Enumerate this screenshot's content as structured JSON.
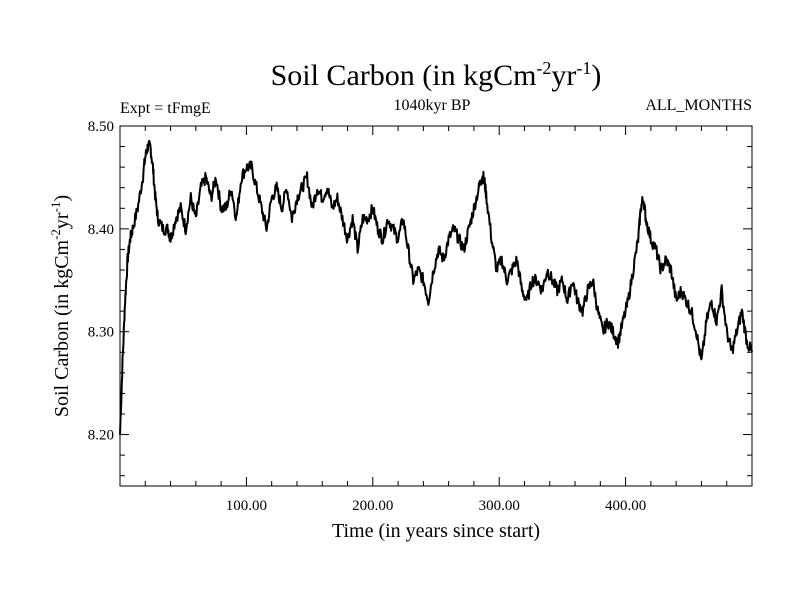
{
  "chart_data": {
    "type": "line",
    "title_base": "Soil Carbon (in kgCm",
    "title_sup1": "-2",
    "title_mid": "yr",
    "title_sup2": "-1",
    "title_end": ")",
    "subtitle_left": "Expt = tFmgE",
    "subtitle_center": "1040kyr BP",
    "subtitle_right": "ALL_MONTHS",
    "xlabel": "Time (in years since start)",
    "ylabel_base": "Soil Carbon (in kgCm",
    "ylabel_sup1": "-2",
    "ylabel_mid": "yr",
    "ylabel_sup2": "-1",
    "ylabel_end": ")",
    "xlim": [
      0,
      500
    ],
    "ylim": [
      8.15,
      8.5
    ],
    "x_ticks": [
      100,
      200,
      300,
      400
    ],
    "x_tick_labels": [
      "100.00",
      "200.00",
      "300.00",
      "400.00"
    ],
    "y_ticks": [
      8.2,
      8.3,
      8.4,
      8.5
    ],
    "y_tick_labels": [
      "8.20",
      "8.30",
      "8.40",
      "8.50"
    ],
    "grid": false,
    "series": [
      {
        "name": "Soil Carbon",
        "color": "#000000",
        "x": [
          0,
          2,
          4,
          6,
          8,
          10,
          14,
          18,
          20,
          22,
          24,
          26,
          28,
          30,
          34,
          38,
          40,
          44,
          48,
          52,
          56,
          60,
          64,
          68,
          72,
          76,
          80,
          84,
          88,
          92,
          96,
          100,
          104,
          108,
          112,
          116,
          120,
          124,
          128,
          132,
          136,
          140,
          144,
          148,
          152,
          156,
          160,
          164,
          168,
          172,
          176,
          180,
          184,
          188,
          192,
          196,
          200,
          204,
          208,
          212,
          216,
          220,
          224,
          228,
          232,
          236,
          240,
          244,
          248,
          252,
          256,
          260,
          264,
          268,
          272,
          276,
          280,
          284,
          286,
          288,
          290,
          294,
          298,
          302,
          306,
          310,
          314,
          318,
          322,
          326,
          330,
          334,
          338,
          342,
          346,
          350,
          354,
          358,
          362,
          366,
          370,
          374,
          378,
          382,
          386,
          390,
          394,
          398,
          402,
          406,
          410,
          412,
          414,
          416,
          420,
          424,
          428,
          432,
          436,
          440,
          444,
          448,
          452,
          456,
          460,
          464,
          468,
          472,
          476,
          480,
          484,
          488,
          492,
          496,
          500
        ],
        "values": [
          8.2,
          8.27,
          8.33,
          8.37,
          8.39,
          8.4,
          8.42,
          8.45,
          8.47,
          8.48,
          8.48,
          8.46,
          8.43,
          8.41,
          8.4,
          8.4,
          8.39,
          8.41,
          8.42,
          8.4,
          8.43,
          8.41,
          8.44,
          8.45,
          8.43,
          8.45,
          8.42,
          8.42,
          8.44,
          8.41,
          8.45,
          8.46,
          8.46,
          8.44,
          8.42,
          8.4,
          8.43,
          8.44,
          8.42,
          8.44,
          8.41,
          8.43,
          8.44,
          8.45,
          8.42,
          8.44,
          8.43,
          8.44,
          8.42,
          8.43,
          8.41,
          8.39,
          8.41,
          8.38,
          8.41,
          8.41,
          8.42,
          8.4,
          8.39,
          8.41,
          8.4,
          8.39,
          8.41,
          8.38,
          8.35,
          8.36,
          8.35,
          8.33,
          8.36,
          8.38,
          8.37,
          8.39,
          8.4,
          8.39,
          8.38,
          8.4,
          8.42,
          8.44,
          8.45,
          8.45,
          8.43,
          8.39,
          8.36,
          8.37,
          8.35,
          8.36,
          8.37,
          8.34,
          8.33,
          8.35,
          8.35,
          8.34,
          8.36,
          8.35,
          8.34,
          8.35,
          8.33,
          8.35,
          8.33,
          8.32,
          8.34,
          8.35,
          8.32,
          8.3,
          8.31,
          8.3,
          8.29,
          8.31,
          8.33,
          8.36,
          8.39,
          8.42,
          8.43,
          8.41,
          8.39,
          8.38,
          8.36,
          8.37,
          8.36,
          8.33,
          8.34,
          8.33,
          8.32,
          8.3,
          8.27,
          8.31,
          8.33,
          8.31,
          8.34,
          8.3,
          8.28,
          8.3,
          8.32,
          8.29,
          8.28
        ]
      }
    ]
  }
}
